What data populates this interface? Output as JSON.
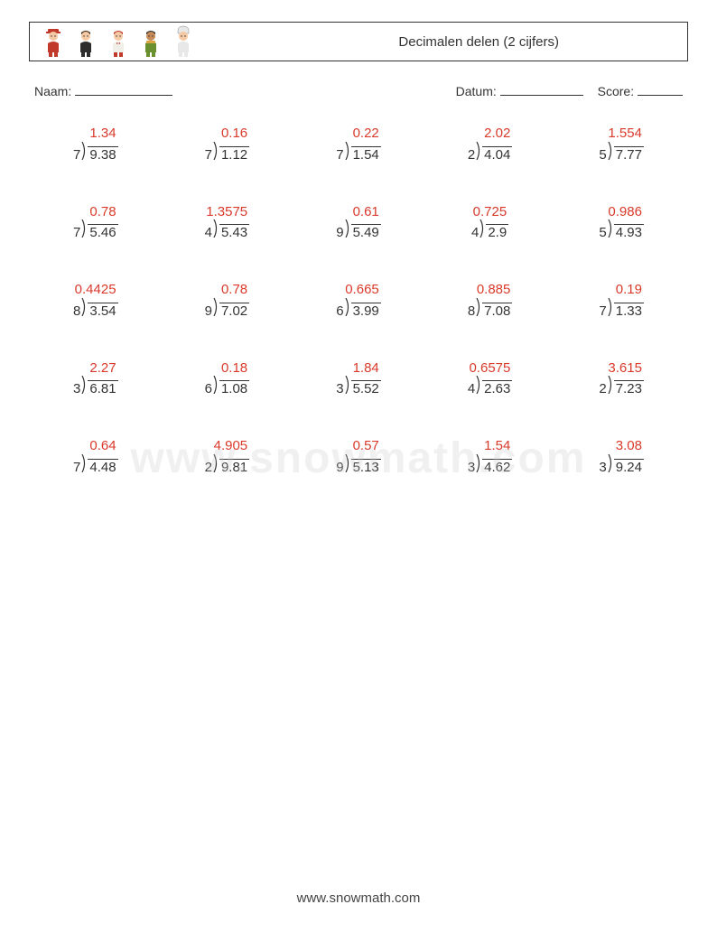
{
  "header": {
    "title": "Decimalen delen (2 cijfers)",
    "icons": [
      {
        "name": "person-icon-red",
        "shirt": "#c0392b",
        "pants": "#c0392b",
        "hat": "#c0392b",
        "skin": "#f5c9a4",
        "hair": "#5a3b1e"
      },
      {
        "name": "person-icon-black",
        "shirt": "#2d2d2d",
        "pants": "#2d2d2d",
        "hat": null,
        "skin": "#f5c9a4",
        "hair": "#3a2a18"
      },
      {
        "name": "person-icon-bowtie",
        "shirt": "#f0efe8",
        "pants": "#c0392b",
        "hat": null,
        "skin": "#f5c9a4",
        "hair": "#c0392b",
        "bowtie": "#c0392b"
      },
      {
        "name": "person-icon-green",
        "shirt": "#6a8f2f",
        "pants": "#6a8f2f",
        "hat": null,
        "skin": "#c68b59",
        "hair": "#2f2f2f",
        "scarf": "#d9a441"
      },
      {
        "name": "person-icon-chef",
        "shirt": "#e8e8e8",
        "pants": "#e8e8e8",
        "hat": "#e8e8e8",
        "skin": "#f5c9a4",
        "hair": "#444",
        "chefHat": true
      }
    ]
  },
  "info": {
    "name_label": "Naam:",
    "date_label": "Datum:",
    "score_label": "Score:",
    "name_blank_width": 108,
    "date_blank_width": 92,
    "score_blank_width": 50
  },
  "style": {
    "answer_color": "#d93a2b",
    "text_color": "#333333",
    "font_size_problem": 15,
    "grid_cols": 5,
    "grid_rows": 5
  },
  "problems": [
    [
      {
        "divisor": "7",
        "dividend": "9.38",
        "answer": "1.34"
      },
      {
        "divisor": "7",
        "dividend": "1.12",
        "answer": "0.16"
      },
      {
        "divisor": "7",
        "dividend": "1.54",
        "answer": "0.22"
      },
      {
        "divisor": "2",
        "dividend": "4.04",
        "answer": "2.02"
      },
      {
        "divisor": "5",
        "dividend": "7.77",
        "answer": "1.554"
      }
    ],
    [
      {
        "divisor": "7",
        "dividend": "5.46",
        "answer": "0.78"
      },
      {
        "divisor": "4",
        "dividend": "5.43",
        "answer": "1.3575"
      },
      {
        "divisor": "9",
        "dividend": "5.49",
        "answer": "0.61"
      },
      {
        "divisor": "4",
        "dividend": "2.9",
        "answer": "0.725"
      },
      {
        "divisor": "5",
        "dividend": "4.93",
        "answer": "0.986"
      }
    ],
    [
      {
        "divisor": "8",
        "dividend": "3.54",
        "answer": "0.4425"
      },
      {
        "divisor": "9",
        "dividend": "7.02",
        "answer": "0.78"
      },
      {
        "divisor": "6",
        "dividend": "3.99",
        "answer": "0.665"
      },
      {
        "divisor": "8",
        "dividend": "7.08",
        "answer": "0.885"
      },
      {
        "divisor": "7",
        "dividend": "1.33",
        "answer": "0.19"
      }
    ],
    [
      {
        "divisor": "3",
        "dividend": "6.81",
        "answer": "2.27"
      },
      {
        "divisor": "6",
        "dividend": "1.08",
        "answer": "0.18"
      },
      {
        "divisor": "3",
        "dividend": "5.52",
        "answer": "1.84"
      },
      {
        "divisor": "4",
        "dividend": "2.63",
        "answer": "0.6575"
      },
      {
        "divisor": "2",
        "dividend": "7.23",
        "answer": "3.615"
      }
    ],
    [
      {
        "divisor": "7",
        "dividend": "4.48",
        "answer": "0.64"
      },
      {
        "divisor": "2",
        "dividend": "9.81",
        "answer": "4.905"
      },
      {
        "divisor": "9",
        "dividend": "5.13",
        "answer": "0.57"
      },
      {
        "divisor": "3",
        "dividend": "4.62",
        "answer": "1.54"
      },
      {
        "divisor": "3",
        "dividend": "9.24",
        "answer": "3.08"
      }
    ]
  ],
  "watermark": {
    "text": "www.snowmath.com",
    "color": "rgba(200,200,200,0.28)"
  },
  "footer": {
    "url": "www.snowmath.com"
  }
}
